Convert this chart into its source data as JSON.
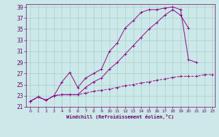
{
  "xlabel": "Windchill (Refroidissement éolien,°C)",
  "bg_color": "#cce8e8",
  "line_color": "#880088",
  "grid_color": "#aacccc",
  "text_color": "#660066",
  "xlim": [
    -0.5,
    23.3
  ],
  "ylim": [
    21,
    39.5
  ],
  "xticks": [
    0,
    1,
    2,
    3,
    4,
    5,
    6,
    7,
    8,
    9,
    10,
    11,
    12,
    13,
    14,
    15,
    16,
    17,
    18,
    19,
    20,
    21,
    22,
    23
  ],
  "yticks": [
    21,
    23,
    25,
    27,
    29,
    31,
    33,
    35,
    37,
    39
  ],
  "line1_x": [
    0,
    1,
    2,
    3,
    4,
    5,
    6,
    7,
    8,
    9,
    10,
    11,
    12,
    13,
    14,
    15,
    16,
    17,
    18,
    19,
    20,
    21,
    22,
    23
  ],
  "line1_y": [
    22.0,
    22.8,
    22.2,
    23.0,
    25.5,
    27.2,
    24.5,
    26.2,
    27.0,
    27.8,
    31.0,
    32.5,
    35.2,
    36.5,
    38.0,
    38.5,
    38.5,
    38.8,
    39.0,
    38.5,
    29.5,
    29.0,
    null,
    null
  ],
  "line2_x": [
    0,
    1,
    2,
    3,
    4,
    5,
    6,
    7,
    8,
    9,
    10,
    11,
    12,
    13,
    14,
    15,
    16,
    17,
    18,
    19,
    20
  ],
  "line2_y": [
    22.0,
    22.8,
    22.2,
    23.0,
    23.2,
    23.2,
    23.2,
    24.5,
    25.5,
    26.2,
    27.8,
    29.0,
    30.5,
    32.0,
    33.5,
    35.0,
    36.2,
    37.5,
    38.5,
    37.5,
    35.2
  ],
  "line3_x": [
    0,
    1,
    2,
    3,
    4,
    5,
    6,
    7,
    8,
    9,
    10,
    11,
    12,
    13,
    14,
    15,
    16,
    17,
    18,
    19,
    20,
    21,
    22,
    23
  ],
  "line3_y": [
    22.0,
    22.8,
    22.2,
    23.0,
    23.2,
    23.2,
    23.2,
    23.5,
    23.8,
    24.0,
    24.2,
    24.5,
    24.8,
    25.0,
    25.3,
    25.5,
    25.8,
    26.0,
    26.3,
    26.5,
    26.5,
    26.5,
    26.8,
    26.8
  ]
}
